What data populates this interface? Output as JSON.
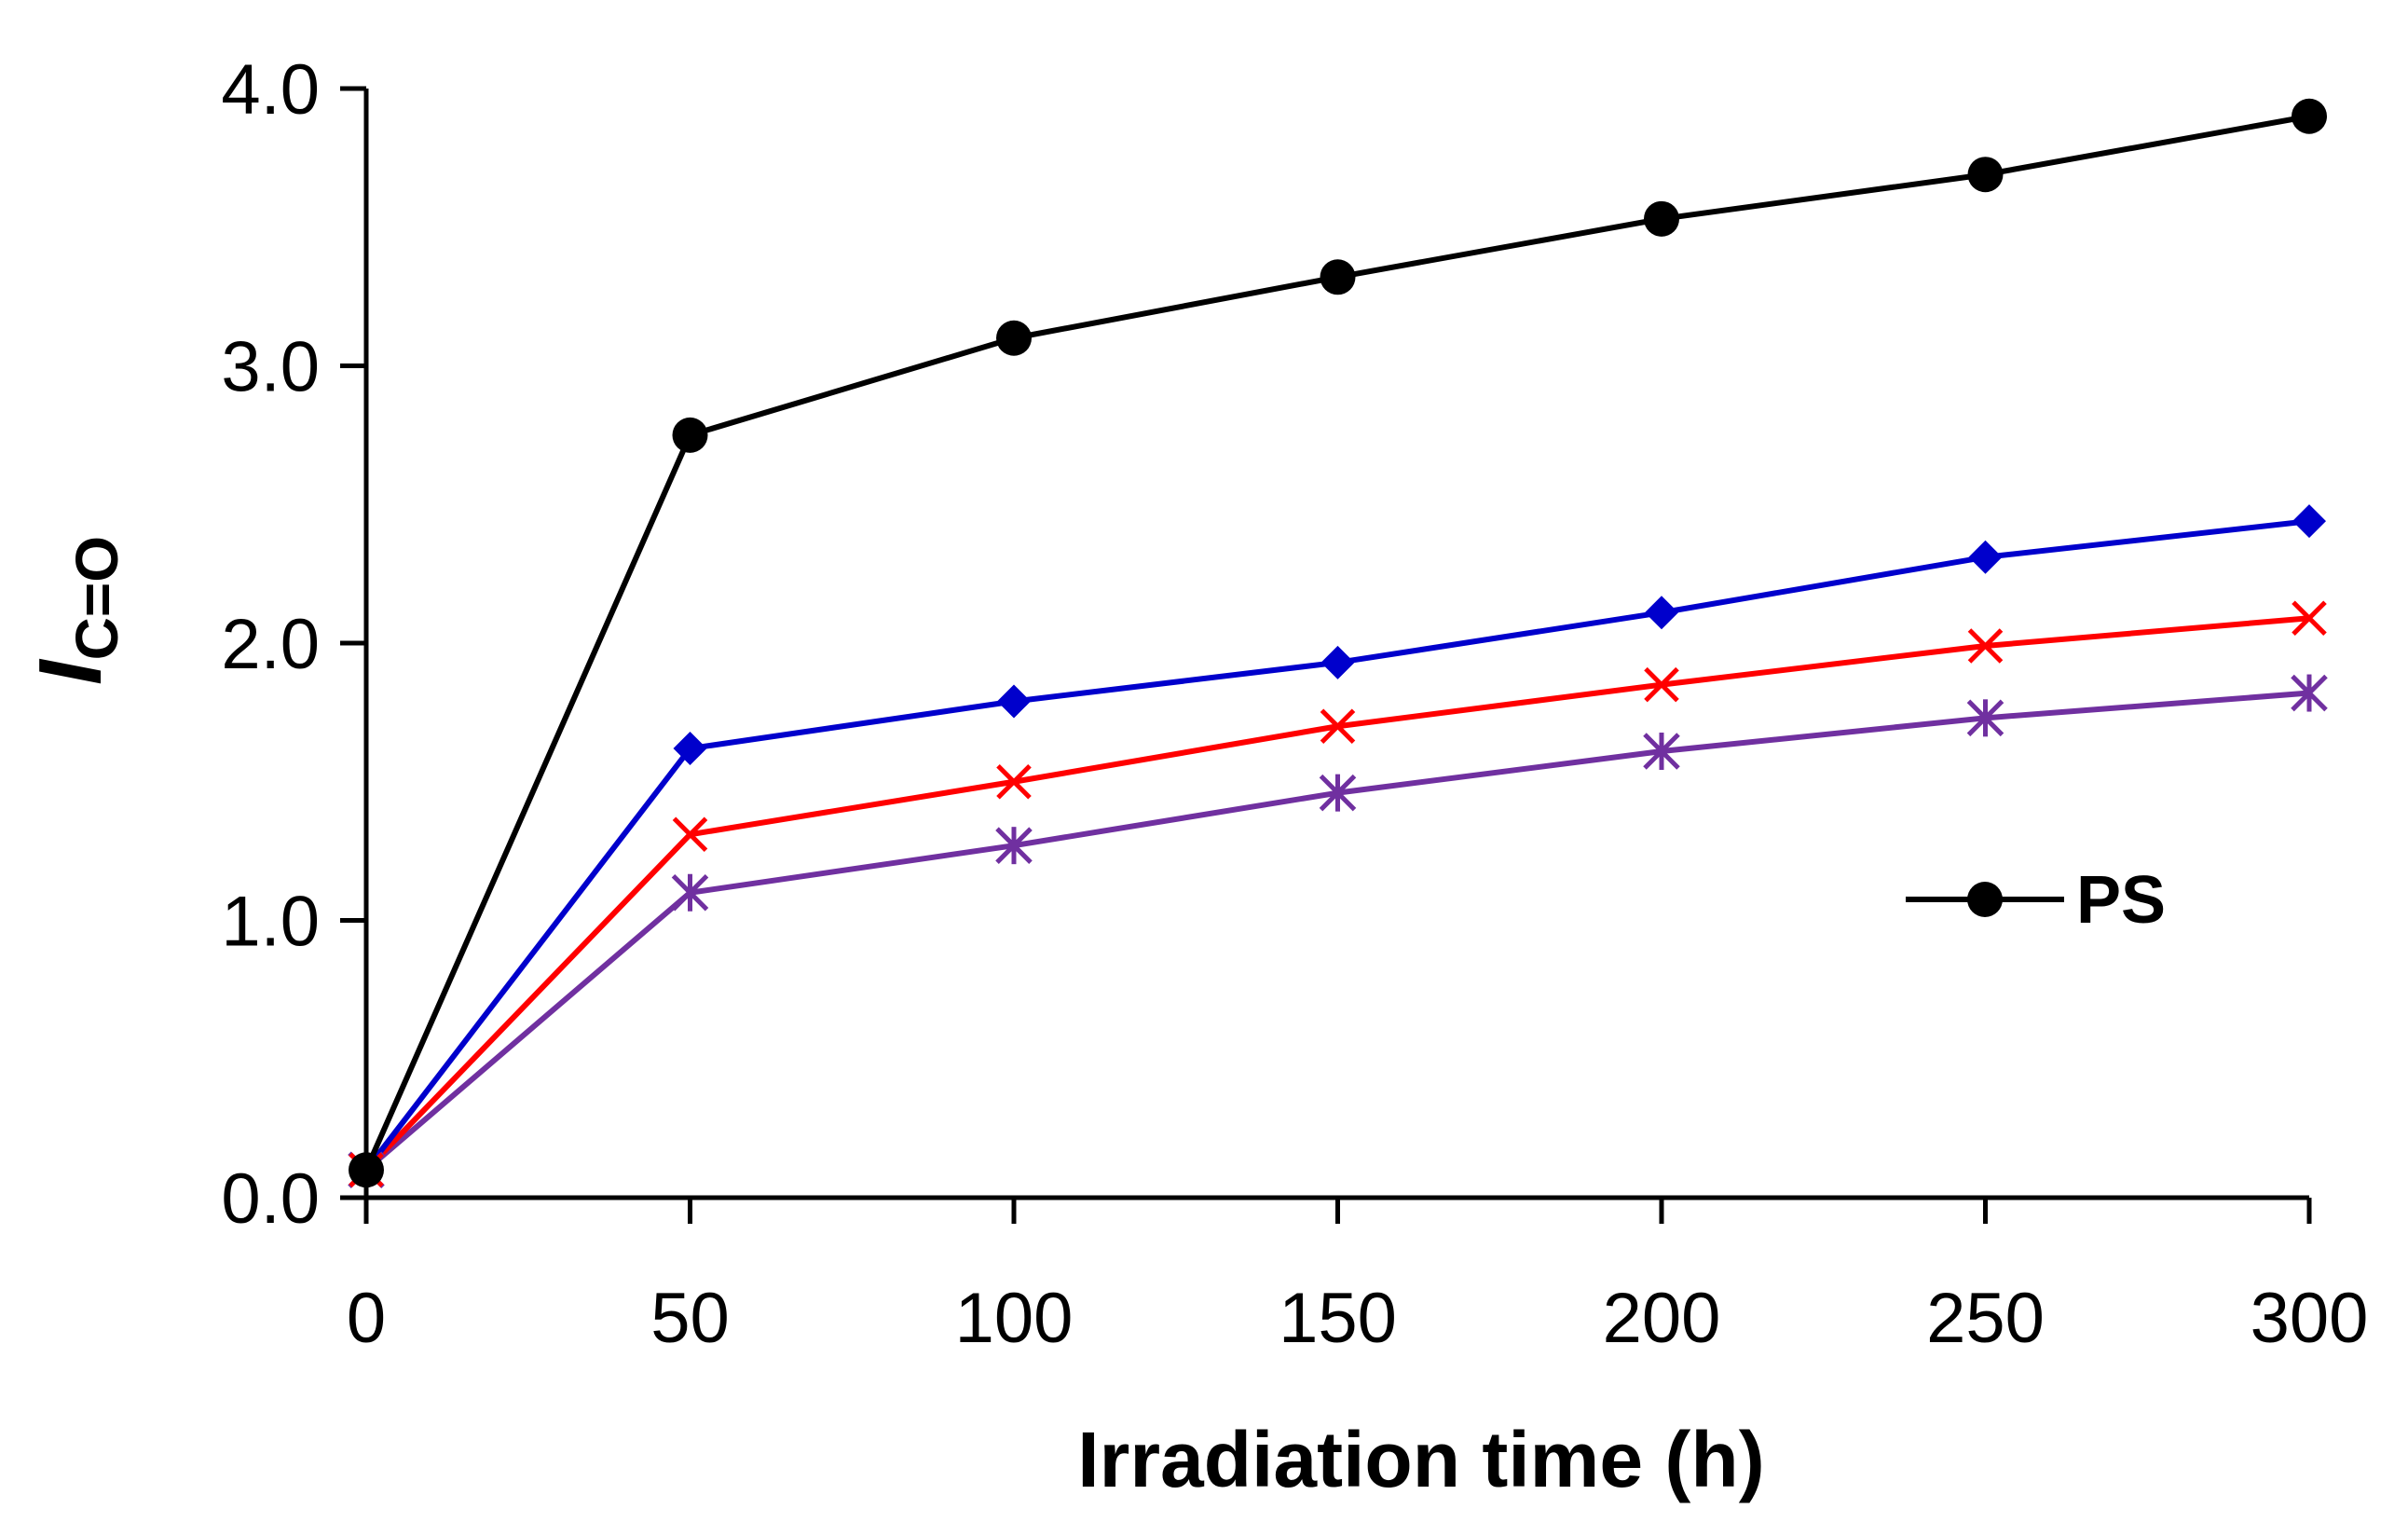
{
  "chart_data": {
    "type": "line",
    "title": "",
    "xlabel": "Irradiation time (h)",
    "ylabel_main": "I",
    "ylabel_sub": "C=O",
    "x": [
      0,
      50,
      100,
      150,
      200,
      250,
      300
    ],
    "xlim": [
      0,
      300
    ],
    "ylim": [
      0,
      4.0
    ],
    "x_ticks": [
      "0",
      "50",
      "100",
      "150",
      "200",
      "250",
      "300"
    ],
    "y_ticks": [
      "0.0",
      "1.0",
      "2.0",
      "3.0",
      "4.0"
    ],
    "grid": false,
    "legend": {
      "position": "right",
      "entries": [
        "PS"
      ]
    },
    "series": [
      {
        "name": "PS",
        "color": "#000000",
        "marker": "circle",
        "values": [
          0.1,
          2.75,
          3.1,
          3.32,
          3.53,
          3.69,
          3.9
        ]
      },
      {
        "color": "#0000cc",
        "marker": "diamond",
        "values": [
          0.1,
          1.62,
          1.79,
          1.93,
          2.11,
          2.31,
          2.44
        ]
      },
      {
        "color": "#ff0000",
        "marker": "x",
        "values": [
          0.1,
          1.31,
          1.5,
          1.7,
          1.85,
          1.99,
          2.09
        ]
      },
      {
        "color": "#7030a0",
        "marker": "asterisk",
        "values": [
          0.1,
          1.1,
          1.27,
          1.46,
          1.61,
          1.73,
          1.82
        ]
      }
    ]
  }
}
